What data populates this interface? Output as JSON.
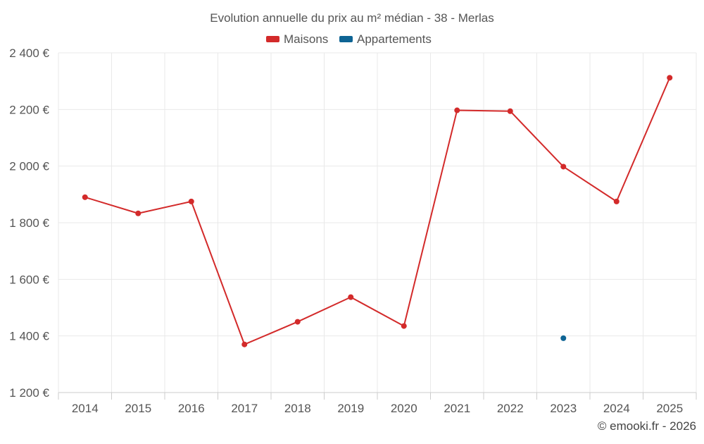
{
  "chart_data": {
    "type": "line",
    "title": "Evolution annuelle du prix au m² médian - 38 - Merlas",
    "categories": [
      "2014",
      "2015",
      "2016",
      "2017",
      "2018",
      "2019",
      "2020",
      "2021",
      "2022",
      "2023",
      "2024",
      "2025"
    ],
    "series": [
      {
        "name": "Maisons",
        "color": "#d32a2a",
        "values": [
          1890,
          1833,
          1875,
          1370,
          1450,
          1537,
          1435,
          2197,
          2194,
          1998,
          1875,
          2312
        ]
      },
      {
        "name": "Appartements",
        "color": "#0e6494",
        "values": [
          null,
          null,
          null,
          null,
          null,
          null,
          null,
          null,
          null,
          1392,
          null,
          null
        ]
      }
    ],
    "ylim": [
      1200,
      2400
    ],
    "yticks": [
      1200,
      1400,
      1600,
      1800,
      2000,
      2200,
      2400
    ],
    "ytick_labels": [
      "1 200 €",
      "1 400 €",
      "1 600 €",
      "1 800 €",
      "2 000 €",
      "2 200 €",
      "2 400 €"
    ],
    "grid": true,
    "legend_position": "top-center"
  },
  "credit": "© emooki.fr - 2026"
}
